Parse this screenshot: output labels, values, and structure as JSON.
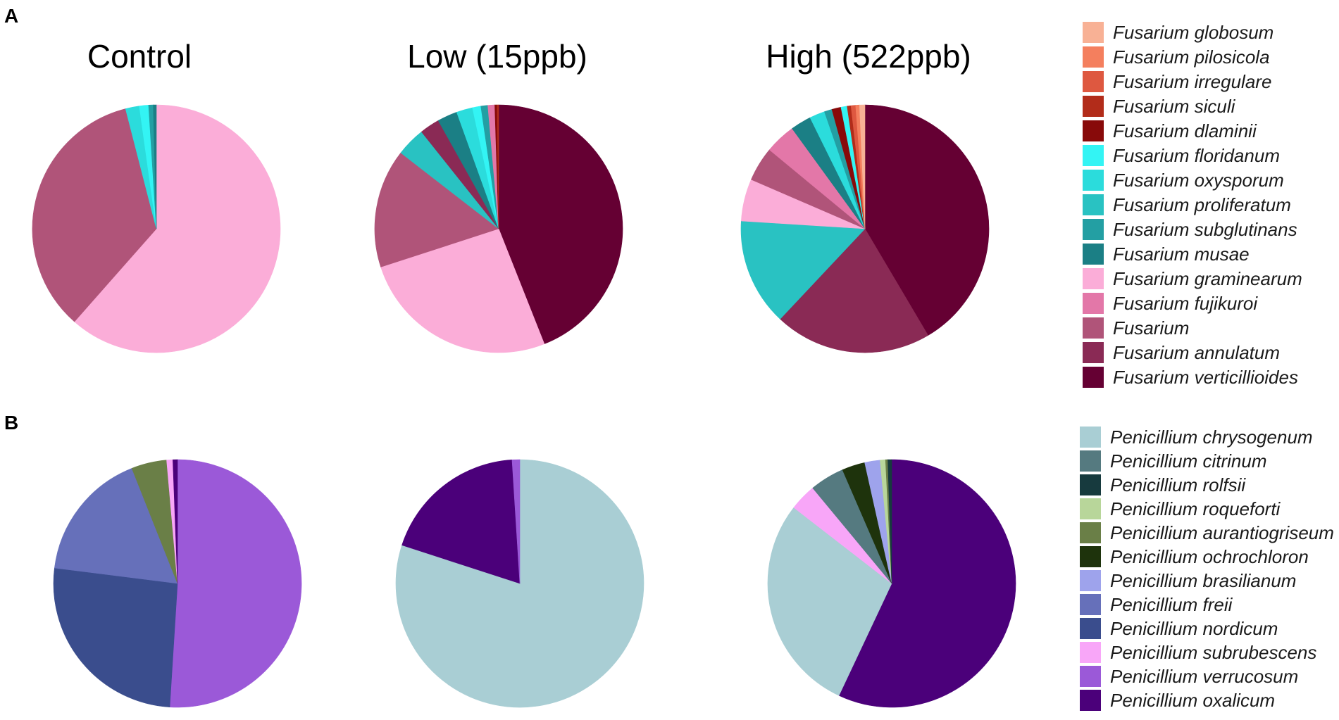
{
  "panel_labels": {
    "a": "A",
    "b": "B"
  },
  "column_titles": [
    "Control",
    "Low (15ppb)",
    "High (522ppb)"
  ],
  "chart_data": [
    {
      "type": "pie",
      "panel": "A",
      "legend_position": "right",
      "legend": [
        {
          "name": "Fusarium globosum",
          "color": "#F8B195"
        },
        {
          "name": "Fusarium pilosicola",
          "color": "#F47F5E"
        },
        {
          "name": "Fusarium irregulare",
          "color": "#DE5840"
        },
        {
          "name": "Fusarium siculi",
          "color": "#B22C1A"
        },
        {
          "name": "Fusarium dlaminii",
          "color": "#880A0A"
        },
        {
          "name": "Fusarium floridanum",
          "color": "#33F4F4"
        },
        {
          "name": "Fusarium oxysporum",
          "color": "#2BDCDC"
        },
        {
          "name": "Fusarium proliferatum",
          "color": "#29C2C2"
        },
        {
          "name": "Fusarium subglutinans",
          "color": "#239FA3"
        },
        {
          "name": "Fusarium musae",
          "color": "#1B7F85"
        },
        {
          "name": "Fusarium graminearum",
          "color": "#FBADD8"
        },
        {
          "name": "Fusarium fujikuroi",
          "color": "#E377A8"
        },
        {
          "name": "Fusarium",
          "color": "#B05479"
        },
        {
          "name": "Fusarium annulatum",
          "color": "#8A2A55"
        },
        {
          "name": "Fusarium verticillioides",
          "color": "#650033"
        }
      ],
      "pies": [
        {
          "group": "Control",
          "slices": [
            {
              "name": "Fusarium graminearum",
              "value": 61.5
            },
            {
              "name": "Fusarium",
              "value": 34.5
            },
            {
              "name": "Fusarium oxysporum",
              "value": 1.8
            },
            {
              "name": "Fusarium floridanum",
              "value": 1.2
            },
            {
              "name": "Fusarium subglutinans",
              "value": 0.6
            },
            {
              "name": "Fusarium musae",
              "value": 0.4
            }
          ]
        },
        {
          "group": "Low (15ppb)",
          "slices": [
            {
              "name": "Fusarium verticillioides",
              "value": 44.0
            },
            {
              "name": "Fusarium graminearum",
              "value": 26.0
            },
            {
              "name": "Fusarium",
              "value": 15.5
            },
            {
              "name": "Fusarium proliferatum",
              "value": 3.8
            },
            {
              "name": "Fusarium annulatum",
              "value": 2.6
            },
            {
              "name": "Fusarium musae",
              "value": 2.6
            },
            {
              "name": "Fusarium oxysporum",
              "value": 2.1
            },
            {
              "name": "Fusarium floridanum",
              "value": 1.1
            },
            {
              "name": "Fusarium subglutinans",
              "value": 0.9
            },
            {
              "name": "Fusarium fujikuroi",
              "value": 0.9
            },
            {
              "name": "Fusarium dlaminii",
              "value": 0.3
            },
            {
              "name": "Fusarium siculi",
              "value": 0.2
            }
          ]
        },
        {
          "group": "High (522ppb)",
          "slices": [
            {
              "name": "Fusarium verticillioides",
              "value": 41.5
            },
            {
              "name": "Fusarium annulatum",
              "value": 20.5
            },
            {
              "name": "Fusarium proliferatum",
              "value": 14.0
            },
            {
              "name": "Fusarium graminearum",
              "value": 5.5
            },
            {
              "name": "Fusarium",
              "value": 4.5
            },
            {
              "name": "Fusarium fujikuroi",
              "value": 4.0
            },
            {
              "name": "Fusarium musae",
              "value": 2.7
            },
            {
              "name": "Fusarium oxysporum",
              "value": 2.0
            },
            {
              "name": "Fusarium subglutinans",
              "value": 1.0
            },
            {
              "name": "Fusarium dlaminii",
              "value": 1.2
            },
            {
              "name": "Fusarium floridanum",
              "value": 0.8
            },
            {
              "name": "Fusarium siculi",
              "value": 0.5
            },
            {
              "name": "Fusarium irregulare",
              "value": 0.6
            },
            {
              "name": "Fusarium pilosicola",
              "value": 0.5
            },
            {
              "name": "Fusarium globosum",
              "value": 0.7
            }
          ]
        }
      ]
    },
    {
      "type": "pie",
      "panel": "B",
      "legend_position": "right",
      "legend": [
        {
          "name": "Penicillium chrysogenum",
          "color": "#A9CED4"
        },
        {
          "name": "Penicillium citrinum",
          "color": "#557A80"
        },
        {
          "name": "Penicillium rolfsii",
          "color": "#173A3E"
        },
        {
          "name": "Penicillium roqueforti",
          "color": "#B8D69A"
        },
        {
          "name": "Penicillium aurantiogriseum",
          "color": "#6A7F47"
        },
        {
          "name": "Penicillium ochrochloron",
          "color": "#1E330C"
        },
        {
          "name": "Penicillium brasilianum",
          "color": "#9EA3EC"
        },
        {
          "name": "Penicillium freii",
          "color": "#6670BA"
        },
        {
          "name": "Penicillium nordicum",
          "color": "#3A4D8D"
        },
        {
          "name": "Penicillium subrubescens",
          "color": "#F8A6F8"
        },
        {
          "name": "Penicillium verrucosum",
          "color": "#9B59D8"
        },
        {
          "name": "Penicillium oxalicum",
          "color": "#4B007A"
        }
      ],
      "pies": [
        {
          "group": "Control",
          "slices": [
            {
              "name": "Penicillium verrucosum",
              "value": 51.0
            },
            {
              "name": "Penicillium nordicum",
              "value": 26.0
            },
            {
              "name": "Penicillium freii",
              "value": 17.0
            },
            {
              "name": "Penicillium aurantiogriseum",
              "value": 4.6
            },
            {
              "name": "Penicillium subrubescens",
              "value": 0.8
            },
            {
              "name": "Penicillium oxalicum",
              "value": 0.6
            }
          ]
        },
        {
          "group": "Low (15ppb)",
          "slices": [
            {
              "name": "Penicillium chrysogenum",
              "value": 80.0
            },
            {
              "name": "Penicillium oxalicum",
              "value": 19.0
            },
            {
              "name": "Penicillium verrucosum",
              "value": 1.0
            }
          ]
        },
        {
          "group": "High (522ppb)",
          "slices": [
            {
              "name": "Penicillium oxalicum",
              "value": 57.0
            },
            {
              "name": "Penicillium chrysogenum",
              "value": 28.5
            },
            {
              "name": "Penicillium subrubescens",
              "value": 3.5
            },
            {
              "name": "Penicillium citrinum",
              "value": 4.5
            },
            {
              "name": "Penicillium ochrochloron",
              "value": 3.0
            },
            {
              "name": "Penicillium brasilianum",
              "value": 2.0
            },
            {
              "name": "Penicillium roqueforti",
              "value": 0.7
            },
            {
              "name": "Penicillium aurantiogriseum",
              "value": 0.3
            },
            {
              "name": "Penicillium rolfsii",
              "value": 0.5
            }
          ]
        }
      ]
    }
  ]
}
